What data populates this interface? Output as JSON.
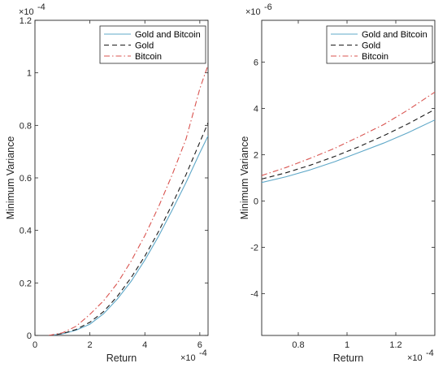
{
  "chart_data": [
    {
      "type": "line",
      "xlabel": "Return",
      "ylabel": "Minimum Variance",
      "x_multiplier": "×10",
      "x_exponent": "-4",
      "y_multiplier": "×10",
      "y_exponent": "-4",
      "xlim": [
        0,
        6.3
      ],
      "ylim": [
        0,
        1.2
      ],
      "xticks": [
        0,
        2,
        4,
        6
      ],
      "yticks": [
        0,
        0.2,
        0.4,
        0.6,
        0.8,
        1,
        1.2
      ],
      "xtick_labels": [
        "0",
        "2",
        "4",
        "6"
      ],
      "ytick_labels": [
        "0",
        "0.2",
        "0.4",
        "0.6",
        "0.8",
        "1",
        "1.2"
      ],
      "grid": false,
      "legend_position": "top-right",
      "series": [
        {
          "name": "Gold and Bitcoin",
          "color": "#5fa8c8",
          "dash": "solid",
          "x": [
            0.5,
            1.0,
            1.5,
            2.0,
            2.5,
            3.0,
            3.5,
            4.0,
            4.5,
            5.0,
            5.5,
            6.0,
            6.3
          ],
          "y": [
            0.0,
            0.006,
            0.02,
            0.043,
            0.083,
            0.139,
            0.206,
            0.287,
            0.378,
            0.478,
            0.583,
            0.696,
            0.76
          ]
        },
        {
          "name": "Gold",
          "color": "#1a1a1a",
          "dash": "dashed",
          "x": [
            0.5,
            1.0,
            1.5,
            2.0,
            2.5,
            3.0,
            3.5,
            4.0,
            4.5,
            5.0,
            5.5,
            6.0,
            6.3
          ],
          "y": [
            0.0,
            0.007,
            0.023,
            0.05,
            0.091,
            0.149,
            0.22,
            0.302,
            0.396,
            0.5,
            0.613,
            0.736,
            0.81
          ]
        },
        {
          "name": "Bitcoin",
          "color": "#d9534f",
          "dash": "dashdot",
          "x": [
            0.5,
            1.0,
            1.5,
            2.0,
            2.5,
            3.0,
            3.5,
            4.0,
            4.5,
            5.0,
            5.5,
            6.0,
            6.3
          ],
          "y": [
            0.0,
            0.01,
            0.035,
            0.08,
            0.132,
            0.199,
            0.283,
            0.38,
            0.49,
            0.613,
            0.749,
            0.94,
            1.03
          ]
        }
      ]
    },
    {
      "type": "line",
      "xlabel": "Return",
      "ylabel": "Minimum Variance",
      "x_multiplier": "×10",
      "x_exponent": "-4",
      "y_multiplier": "×10",
      "y_exponent": "-6",
      "xlim": [
        0.65,
        1.36
      ],
      "ylim": [
        -5.8,
        7.8
      ],
      "xticks": [
        0.8,
        1.0,
        1.2
      ],
      "yticks": [
        -4,
        -2,
        0,
        2,
        4,
        6
      ],
      "xtick_labels": [
        "0.8",
        "1",
        "1.2"
      ],
      "ytick_labels": [
        "-4",
        "-2",
        "0",
        "2",
        "4",
        "6"
      ],
      "grid": false,
      "legend_position": "top-right",
      "series": [
        {
          "name": "Gold and Bitcoin",
          "color": "#5fa8c8",
          "dash": "solid",
          "x": [
            0.65,
            0.75,
            0.85,
            0.95,
            1.05,
            1.15,
            1.25,
            1.36
          ],
          "y": [
            0.8,
            1.05,
            1.35,
            1.7,
            2.1,
            2.5,
            2.95,
            3.5
          ]
        },
        {
          "name": "Gold",
          "color": "#1a1a1a",
          "dash": "dashed",
          "x": [
            0.65,
            0.75,
            0.85,
            0.95,
            1.05,
            1.15,
            1.25,
            1.36
          ],
          "y": [
            0.95,
            1.22,
            1.55,
            1.93,
            2.35,
            2.82,
            3.33,
            3.95
          ]
        },
        {
          "name": "Bitcoin",
          "color": "#d9534f",
          "dash": "dashdot",
          "x": [
            0.65,
            0.75,
            0.85,
            0.95,
            1.05,
            1.15,
            1.25,
            1.36
          ],
          "y": [
            1.1,
            1.45,
            1.85,
            2.28,
            2.78,
            3.3,
            3.93,
            4.7
          ]
        }
      ]
    }
  ]
}
